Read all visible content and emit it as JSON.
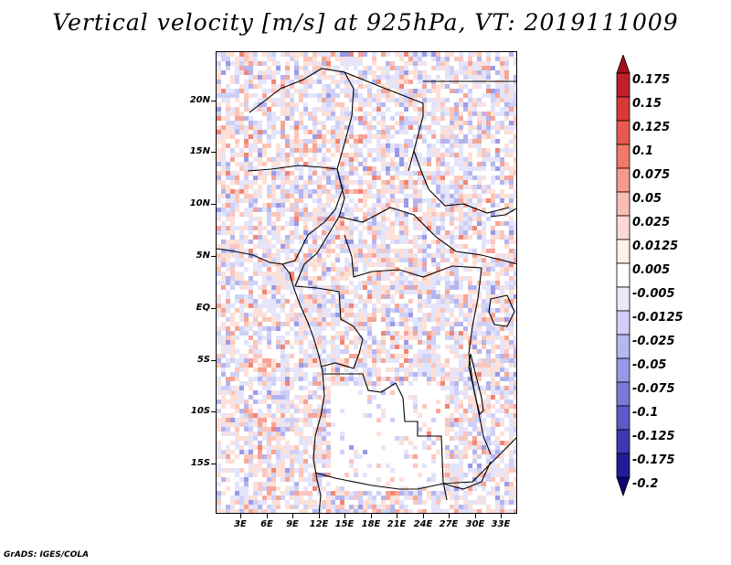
{
  "title": "Vertical velocity [m/s] at 925hPa, VT: 2019111009",
  "credit": "GrADS: IGES/COLA",
  "map": {
    "variable": "Vertical velocity",
    "units": "m/s",
    "level": "925hPa",
    "valid_time": "2019111009",
    "lat_labels": [
      "20N",
      "15N",
      "10N",
      "5N",
      "EQ",
      "5S",
      "10S",
      "15S"
    ],
    "lon_labels": [
      "3E",
      "6E",
      "9E",
      "12E",
      "15E",
      "18E",
      "21E",
      "24E",
      "27E",
      "30E",
      "33E"
    ]
  },
  "colorbar": {
    "labels": [
      "0.175",
      "0.15",
      "0.125",
      "0.1",
      "0.075",
      "0.05",
      "0.025",
      "0.0125",
      "0.005",
      "-0.005",
      "-0.0125",
      "-0.025",
      "-0.05",
      "-0.075",
      "-0.1",
      "-0.125",
      "-0.175",
      "-0.2"
    ],
    "colors": [
      "#a01020",
      "#c0202a",
      "#d83a3a",
      "#e85a50",
      "#f07a6a",
      "#f69a8c",
      "#fbbcb0",
      "#fdd8d0",
      "#fff0ec",
      "#ffffff",
      "#e8e8fb",
      "#d0d0f6",
      "#b6b6f0",
      "#9898e6",
      "#7a7ad9",
      "#5a5ac8",
      "#3a3ab0",
      "#1e1e96",
      "#100070"
    ]
  }
}
